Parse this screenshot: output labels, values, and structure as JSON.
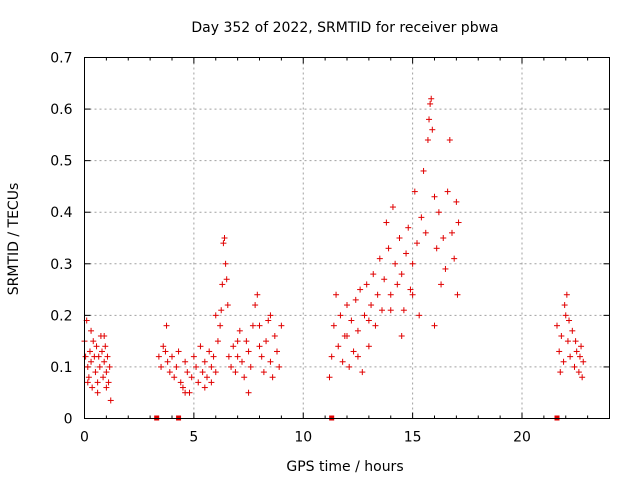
{
  "chart_data": {
    "type": "scatter",
    "title": "Day 352 of 2022, SRMTID for receiver pbwa",
    "xlabel": "GPS time / hours",
    "ylabel": "SRMTID / TECUs",
    "xlim": [
      0,
      24
    ],
    "ylim": [
      0,
      0.7
    ],
    "x_ticks": [
      0,
      5,
      10,
      15,
      20
    ],
    "y_ticks": [
      0,
      0.1,
      0.2,
      0.3,
      0.4,
      0.5,
      0.6,
      0.7
    ],
    "x_tick_labels": [
      "0",
      "5",
      "10",
      "15",
      "20"
    ],
    "y_tick_labels": [
      "0",
      "0.1",
      "0.2",
      "0.3",
      "0.4",
      "0.5",
      "0.6",
      "0.7"
    ],
    "marker": "+",
    "color": "#e00000",
    "grid": true,
    "gap_markers_x": [
      3.3,
      4.3,
      11.3,
      21.6
    ],
    "series": [
      {
        "name": "SRMTID",
        "points": [
          [
            0.0,
            0.15
          ],
          [
            0.05,
            0.12
          ],
          [
            0.1,
            0.19
          ],
          [
            0.15,
            0.1
          ],
          [
            0.2,
            0.08
          ],
          [
            0.25,
            0.13
          ],
          [
            0.3,
            0.11
          ],
          [
            0.35,
            0.06
          ],
          [
            0.4,
            0.15
          ],
          [
            0.45,
            0.12
          ],
          [
            0.5,
            0.09
          ],
          [
            0.55,
            0.14
          ],
          [
            0.6,
            0.07
          ],
          [
            0.65,
            0.12
          ],
          [
            0.7,
            0.1
          ],
          [
            0.75,
            0.16
          ],
          [
            0.8,
            0.13
          ],
          [
            0.85,
            0.08
          ],
          [
            0.9,
            0.11
          ],
          [
            0.95,
            0.14
          ],
          [
            1.0,
            0.09
          ],
          [
            1.05,
            0.12
          ],
          [
            1.1,
            0.07
          ],
          [
            1.15,
            0.1
          ],
          [
            1.2,
            0.035
          ],
          [
            0.3,
            0.17
          ],
          [
            0.6,
            0.05
          ],
          [
            0.9,
            0.16
          ],
          [
            0.15,
            0.07
          ],
          [
            1.0,
            0.06
          ],
          [
            3.4,
            0.12
          ],
          [
            3.5,
            0.1
          ],
          [
            3.6,
            0.14
          ],
          [
            3.7,
            0.13
          ],
          [
            3.75,
            0.18
          ],
          [
            3.8,
            0.11
          ],
          [
            3.9,
            0.09
          ],
          [
            4.0,
            0.12
          ],
          [
            4.1,
            0.08
          ],
          [
            4.2,
            0.1
          ],
          [
            4.3,
            0.13
          ],
          [
            4.4,
            0.07
          ],
          [
            4.5,
            0.06
          ],
          [
            4.6,
            0.11
          ],
          [
            4.7,
            0.09
          ],
          [
            4.8,
            0.05
          ],
          [
            4.9,
            0.08
          ],
          [
            5.0,
            0.12
          ],
          [
            5.1,
            0.1
          ],
          [
            5.2,
            0.07
          ],
          [
            5.3,
            0.14
          ],
          [
            5.4,
            0.09
          ],
          [
            5.5,
            0.11
          ],
          [
            5.6,
            0.08
          ],
          [
            5.7,
            0.13
          ],
          [
            5.8,
            0.1
          ],
          [
            5.9,
            0.12
          ],
          [
            6.0,
            0.09
          ],
          [
            6.1,
            0.15
          ],
          [
            6.2,
            0.18
          ],
          [
            6.25,
            0.21
          ],
          [
            6.3,
            0.26
          ],
          [
            6.35,
            0.34
          ],
          [
            6.4,
            0.35
          ],
          [
            6.45,
            0.3
          ],
          [
            6.5,
            0.27
          ],
          [
            6.55,
            0.22
          ],
          [
            6.6,
            0.12
          ],
          [
            6.7,
            0.1
          ],
          [
            6.8,
            0.14
          ],
          [
            6.9,
            0.09
          ],
          [
            7.0,
            0.12
          ],
          [
            7.1,
            0.17
          ],
          [
            7.2,
            0.11
          ],
          [
            7.3,
            0.08
          ],
          [
            7.4,
            0.15
          ],
          [
            7.5,
            0.13
          ],
          [
            7.6,
            0.1
          ],
          [
            7.7,
            0.18
          ],
          [
            7.8,
            0.22
          ],
          [
            7.9,
            0.24
          ],
          [
            8.0,
            0.14
          ],
          [
            8.1,
            0.12
          ],
          [
            8.2,
            0.09
          ],
          [
            8.3,
            0.15
          ],
          [
            8.4,
            0.19
          ],
          [
            8.5,
            0.11
          ],
          [
            8.6,
            0.08
          ],
          [
            8.7,
            0.16
          ],
          [
            8.8,
            0.13
          ],
          [
            8.9,
            0.1
          ],
          [
            9.0,
            0.18
          ],
          [
            5.5,
            0.06
          ],
          [
            6.0,
            0.2
          ],
          [
            7.0,
            0.15
          ],
          [
            8.0,
            0.18
          ],
          [
            4.6,
            0.05
          ],
          [
            5.8,
            0.07
          ],
          [
            7.5,
            0.05
          ],
          [
            8.5,
            0.2
          ],
          [
            11.2,
            0.08
          ],
          [
            11.3,
            0.12
          ],
          [
            11.4,
            0.18
          ],
          [
            11.5,
            0.24
          ],
          [
            11.6,
            0.14
          ],
          [
            11.7,
            0.2
          ],
          [
            11.8,
            0.11
          ],
          [
            11.9,
            0.16
          ],
          [
            12.0,
            0.22
          ],
          [
            12.1,
            0.1
          ],
          [
            12.2,
            0.19
          ],
          [
            12.3,
            0.13
          ],
          [
            12.4,
            0.23
          ],
          [
            12.5,
            0.17
          ],
          [
            12.6,
            0.25
          ],
          [
            12.7,
            0.09
          ],
          [
            12.8,
            0.2
          ],
          [
            12.9,
            0.26
          ],
          [
            13.0,
            0.14
          ],
          [
            13.1,
            0.22
          ],
          [
            13.2,
            0.28
          ],
          [
            13.3,
            0.18
          ],
          [
            13.4,
            0.24
          ],
          [
            13.5,
            0.31
          ],
          [
            13.6,
            0.21
          ],
          [
            13.7,
            0.27
          ],
          [
            13.8,
            0.38
          ],
          [
            13.9,
            0.33
          ],
          [
            14.0,
            0.24
          ],
          [
            14.1,
            0.41
          ],
          [
            14.2,
            0.3
          ],
          [
            14.3,
            0.26
          ],
          [
            14.4,
            0.35
          ],
          [
            14.5,
            0.28
          ],
          [
            14.6,
            0.21
          ],
          [
            14.7,
            0.32
          ],
          [
            14.8,
            0.37
          ],
          [
            14.9,
            0.25
          ],
          [
            15.0,
            0.3
          ],
          [
            15.1,
            0.44
          ],
          [
            15.2,
            0.34
          ],
          [
            15.3,
            0.2
          ],
          [
            15.4,
            0.39
          ],
          [
            15.5,
            0.48
          ],
          [
            15.6,
            0.36
          ],
          [
            15.7,
            0.54
          ],
          [
            15.75,
            0.58
          ],
          [
            15.8,
            0.61
          ],
          [
            15.85,
            0.62
          ],
          [
            15.9,
            0.56
          ],
          [
            16.0,
            0.43
          ],
          [
            16.1,
            0.33
          ],
          [
            16.2,
            0.4
          ],
          [
            16.3,
            0.26
          ],
          [
            16.4,
            0.35
          ],
          [
            16.5,
            0.29
          ],
          [
            16.6,
            0.44
          ],
          [
            16.7,
            0.54
          ],
          [
            16.8,
            0.36
          ],
          [
            16.9,
            0.31
          ],
          [
            17.0,
            0.42
          ],
          [
            17.05,
            0.24
          ],
          [
            17.1,
            0.38
          ],
          [
            12.0,
            0.16
          ],
          [
            13.0,
            0.19
          ],
          [
            14.0,
            0.21
          ],
          [
            15.0,
            0.24
          ],
          [
            16.0,
            0.18
          ],
          [
            12.5,
            0.12
          ],
          [
            14.5,
            0.16
          ],
          [
            21.6,
            0.18
          ],
          [
            21.7,
            0.13
          ],
          [
            21.8,
            0.16
          ],
          [
            21.9,
            0.11
          ],
          [
            22.0,
            0.2
          ],
          [
            22.05,
            0.24
          ],
          [
            22.1,
            0.15
          ],
          [
            22.2,
            0.12
          ],
          [
            22.3,
            0.17
          ],
          [
            22.4,
            0.1
          ],
          [
            22.5,
            0.13
          ],
          [
            22.6,
            0.09
          ],
          [
            22.7,
            0.14
          ],
          [
            22.8,
            0.11
          ],
          [
            21.75,
            0.09
          ],
          [
            22.15,
            0.19
          ],
          [
            22.45,
            0.15
          ],
          [
            22.65,
            0.12
          ],
          [
            22.75,
            0.08
          ],
          [
            21.95,
            0.22
          ]
        ]
      }
    ]
  }
}
